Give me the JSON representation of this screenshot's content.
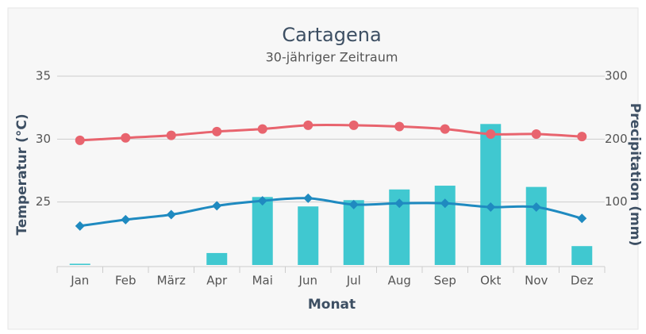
{
  "chart_data": {
    "type": "bar-line",
    "title": "Cartagena",
    "subtitle": "30-jähriger Zeitraum",
    "x_label": "Monat",
    "y_label": "Temperatur (°C)",
    "y2_label": "Precipitation (mm)",
    "categories": [
      "Jan",
      "Feb",
      "März",
      "Apr",
      "Mai",
      "Jun",
      "Jul",
      "Aug",
      "Sep",
      "Okt",
      "Nov",
      "Dez"
    ],
    "series": [
      {
        "type": "bar",
        "axis": "y2",
        "color": "#40c8d0",
        "values": [
          2,
          0,
          0,
          19,
          108,
          93,
          103,
          120,
          126,
          224,
          124,
          30
        ]
      },
      {
        "type": "line",
        "color": "#e8646e",
        "marker": "circle",
        "values": [
          29.9,
          30.1,
          30.3,
          30.6,
          30.8,
          31.1,
          31.1,
          31.0,
          30.8,
          30.4,
          30.4,
          30.2
        ]
      },
      {
        "type": "line",
        "color": "#1f8ac0",
        "marker": "diamond",
        "values": [
          23.1,
          23.6,
          24.0,
          24.7,
          25.1,
          25.3,
          24.8,
          24.9,
          24.9,
          24.6,
          24.6,
          23.7
        ]
      }
    ],
    "ylim": [
      20,
      35
    ],
    "yticks": [
      25,
      30,
      35
    ],
    "y2lim": [
      0,
      300
    ],
    "y2ticks": [
      100,
      200,
      300
    ],
    "grid": true
  }
}
